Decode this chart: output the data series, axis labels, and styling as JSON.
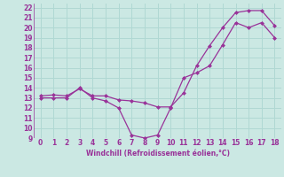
{
  "xlabel": "Windchill (Refroidissement éolien,°C)",
  "bg_color": "#cbe8e3",
  "grid_color": "#b0d8d3",
  "line_color": "#993399",
  "xlim": [
    -0.5,
    18.5
  ],
  "ylim": [
    9,
    22.4
  ],
  "xticks": [
    0,
    1,
    2,
    3,
    4,
    5,
    6,
    7,
    8,
    9,
    10,
    11,
    12,
    13,
    14,
    15,
    16,
    17,
    18
  ],
  "yticks": [
    9,
    10,
    11,
    12,
    13,
    14,
    15,
    16,
    17,
    18,
    19,
    20,
    21,
    22
  ],
  "curve1_x": [
    0,
    1,
    2,
    3,
    4,
    5,
    6,
    7,
    8,
    9,
    10,
    11,
    12,
    13,
    14,
    15,
    16,
    17,
    18
  ],
  "curve1_y": [
    13,
    13,
    13,
    14,
    13,
    12.7,
    12,
    9.3,
    9,
    9.3,
    12,
    15,
    15.5,
    16.2,
    18.3,
    20.5,
    20,
    20.5,
    19.0
  ],
  "curve2_x": [
    0,
    1,
    2,
    3,
    4,
    5,
    6,
    7,
    8,
    9,
    10,
    11,
    12,
    13,
    14,
    15,
    16,
    17,
    18
  ],
  "curve2_y": [
    13.2,
    13.3,
    13.2,
    13.9,
    13.2,
    13.2,
    12.8,
    12.7,
    12.5,
    12.1,
    12.1,
    13.5,
    16.2,
    18.2,
    20.0,
    21.5,
    21.7,
    21.7,
    20.2
  ]
}
